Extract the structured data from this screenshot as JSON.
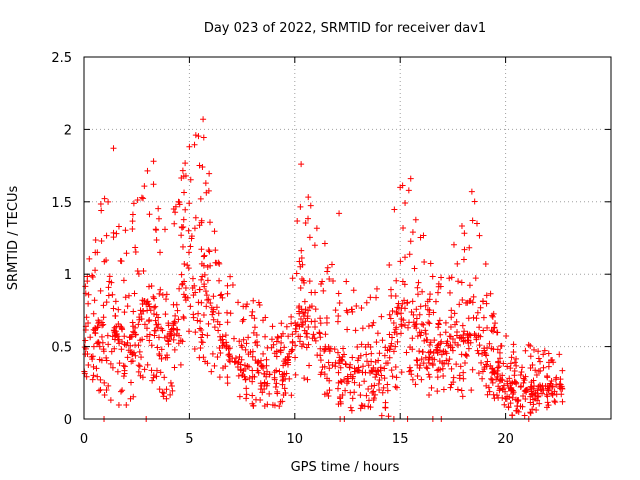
{
  "chart_data": {
    "type": "scatter",
    "title": "Day 023 of 2022, SRMTID for receiver dav1",
    "xlabel": "GPS time / hours",
    "ylabel": "SRMTID / TECUs",
    "xlim": [
      0,
      25
    ],
    "ylim": [
      0,
      2.5
    ],
    "xticks": [
      0,
      5,
      10,
      15,
      20
    ],
    "yticks": [
      0,
      0.5,
      1,
      1.5,
      2,
      2.5
    ],
    "xtick_labels": [
      "0",
      "5",
      "10",
      "15",
      "20"
    ],
    "ytick_labels": [
      "0",
      "0.5",
      "1",
      "1.5",
      "2",
      "2.5"
    ],
    "grid": true,
    "marker": "+",
    "color": "#ff0000",
    "series": [
      {
        "name": "SRMTID",
        "envelope": [
          {
            "x": 0.0,
            "low": 0.3,
            "high": 0.95
          },
          {
            "x": 1.0,
            "low": 0.15,
            "high": 1.7
          },
          {
            "x": 2.0,
            "low": 0.05,
            "high": 1.35
          },
          {
            "x": 3.0,
            "low": 0.3,
            "high": 1.75
          },
          {
            "x": 4.0,
            "low": 0.1,
            "high": 1.35
          },
          {
            "x": 5.0,
            "low": 0.5,
            "high": 1.9
          },
          {
            "x": 5.6,
            "low": 0.4,
            "high": 2.07
          },
          {
            "x": 6.5,
            "low": 0.25,
            "high": 1.15
          },
          {
            "x": 7.5,
            "low": 0.1,
            "high": 0.8
          },
          {
            "x": 8.5,
            "low": 0.05,
            "high": 0.85
          },
          {
            "x": 9.5,
            "low": 0.1,
            "high": 0.7
          },
          {
            "x": 10.3,
            "low": 0.25,
            "high": 1.76
          },
          {
            "x": 11.5,
            "low": 0.15,
            "high": 1.2
          },
          {
            "x": 12.5,
            "low": 0.05,
            "high": 0.95
          },
          {
            "x": 13.5,
            "low": 0.05,
            "high": 0.8
          },
          {
            "x": 14.5,
            "low": 0.0,
            "high": 1.35
          },
          {
            "x": 15.0,
            "low": 0.3,
            "high": 1.6
          },
          {
            "x": 15.5,
            "low": 0.25,
            "high": 1.66
          },
          {
            "x": 16.5,
            "low": 0.15,
            "high": 1.05
          },
          {
            "x": 17.5,
            "low": 0.15,
            "high": 1.2
          },
          {
            "x": 18.5,
            "low": 0.1,
            "high": 1.57
          },
          {
            "x": 19.5,
            "low": 0.1,
            "high": 0.7
          },
          {
            "x": 20.5,
            "low": 0.0,
            "high": 0.5
          },
          {
            "x": 21.5,
            "low": 0.05,
            "high": 0.55
          },
          {
            "x": 22.7,
            "low": 0.1,
            "high": 0.5
          }
        ],
        "notable_points": [
          {
            "x": 5.65,
            "y": 2.07
          },
          {
            "x": 5.0,
            "y": 1.88
          },
          {
            "x": 1.4,
            "y": 1.87
          },
          {
            "x": 10.3,
            "y": 1.76
          },
          {
            "x": 3.3,
            "y": 1.78
          },
          {
            "x": 15.5,
            "y": 1.66
          },
          {
            "x": 18.4,
            "y": 1.57
          },
          {
            "x": 15.0,
            "y": 1.6
          },
          {
            "x": 12.1,
            "y": 1.42
          }
        ],
        "zero_points_x": [
          0.95,
          2.95,
          12.15,
          12.35,
          14.7,
          15.35,
          16.55,
          16.95,
          21.1
        ]
      }
    ]
  }
}
